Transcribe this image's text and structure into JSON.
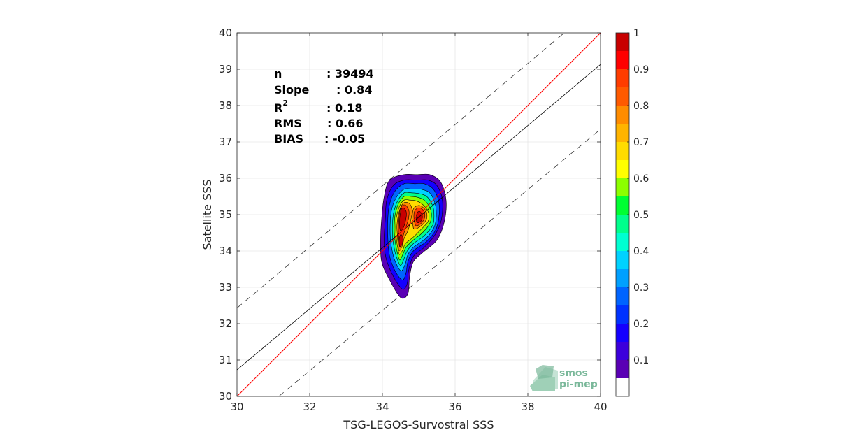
{
  "chart_data": {
    "type": "heatmap",
    "xlabel": "TSG-LEGOS-Survostral SSS",
    "ylabel": "Satellite SSS",
    "xlim": [
      30,
      40
    ],
    "ylim": [
      30,
      40
    ],
    "xticks": [
      "30",
      "32",
      "34",
      "36",
      "38",
      "40"
    ],
    "yticks": [
      "30",
      "31",
      "32",
      "33",
      "34",
      "35",
      "36",
      "37",
      "38",
      "39",
      "40"
    ],
    "grid": true,
    "stats": [
      {
        "label": "n",
        "value": ": 39494"
      },
      {
        "label": "Slope",
        "value": ": 0.84"
      },
      {
        "label": "R",
        "sup": "2",
        "value": ": 0.18"
      },
      {
        "label": "RMS",
        "value": ": 0.66"
      },
      {
        "label": "BIAS",
        "value": ": -0.05"
      }
    ],
    "identity_line": {
      "from": [
        30,
        30
      ],
      "to": [
        40,
        40
      ],
      "color": "#ff0000"
    },
    "regression_line": {
      "from": [
        30,
        30.73
      ],
      "to": [
        40,
        39.13
      ],
      "color": "#000000"
    },
    "envelope_lines": [
      {
        "from": [
          30,
          32.43
        ],
        "to": [
          39.0,
          40.0
        ],
        "style": "dashed"
      },
      {
        "from": [
          31.15,
          30.0
        ],
        "to": [
          40,
          37.35
        ],
        "style": "dashed"
      }
    ],
    "density_contours": [
      {
        "level": 0.05,
        "color": "#5a00b4",
        "points": [
          [
            34.5,
            32.72
          ],
          [
            34.7,
            32.82
          ],
          [
            34.75,
            33.3
          ],
          [
            34.85,
            33.7
          ],
          [
            35.1,
            33.95
          ],
          [
            35.5,
            34.3
          ],
          [
            35.7,
            34.8
          ],
          [
            35.75,
            35.4
          ],
          [
            35.6,
            35.9
          ],
          [
            35.3,
            36.1
          ],
          [
            34.95,
            36.1
          ],
          [
            34.6,
            36.1
          ],
          [
            34.2,
            35.95
          ],
          [
            34.05,
            35.5
          ],
          [
            33.98,
            34.9
          ],
          [
            33.95,
            34.3
          ],
          [
            33.98,
            33.7
          ],
          [
            34.2,
            33.2
          ]
        ]
      },
      {
        "level": 0.15,
        "color": "#1400ff",
        "points": [
          [
            34.55,
            32.95
          ],
          [
            34.68,
            33.1
          ],
          [
            34.72,
            33.45
          ],
          [
            34.85,
            33.85
          ],
          [
            35.15,
            34.1
          ],
          [
            35.45,
            34.45
          ],
          [
            35.62,
            34.85
          ],
          [
            35.65,
            35.4
          ],
          [
            35.5,
            35.8
          ],
          [
            35.25,
            35.95
          ],
          [
            34.95,
            35.95
          ],
          [
            34.6,
            35.95
          ],
          [
            34.3,
            35.8
          ],
          [
            34.12,
            35.4
          ],
          [
            34.08,
            34.9
          ],
          [
            34.05,
            34.3
          ],
          [
            34.1,
            33.8
          ],
          [
            34.3,
            33.3
          ]
        ]
      },
      {
        "level": 0.25,
        "color": "#0064ff",
        "points": [
          [
            34.55,
            33.2
          ],
          [
            34.65,
            33.4
          ],
          [
            34.7,
            33.7
          ],
          [
            34.85,
            34.0
          ],
          [
            35.2,
            34.25
          ],
          [
            35.45,
            34.55
          ],
          [
            35.55,
            34.9
          ],
          [
            35.55,
            35.35
          ],
          [
            35.4,
            35.7
          ],
          [
            35.15,
            35.85
          ],
          [
            34.9,
            35.85
          ],
          [
            34.6,
            35.85
          ],
          [
            34.35,
            35.65
          ],
          [
            34.2,
            35.3
          ],
          [
            34.15,
            34.9
          ],
          [
            34.15,
            34.35
          ],
          [
            34.2,
            33.85
          ],
          [
            34.35,
            33.45
          ]
        ]
      },
      {
        "level": 0.35,
        "color": "#00d2ff",
        "points": [
          [
            34.52,
            33.45
          ],
          [
            34.63,
            33.65
          ],
          [
            34.7,
            33.9
          ],
          [
            34.85,
            34.1
          ],
          [
            35.2,
            34.35
          ],
          [
            35.42,
            34.65
          ],
          [
            35.48,
            34.95
          ],
          [
            35.45,
            35.3
          ],
          [
            35.3,
            35.6
          ],
          [
            35.05,
            35.7
          ],
          [
            34.85,
            35.7
          ],
          [
            34.6,
            35.7
          ],
          [
            34.4,
            35.5
          ],
          [
            34.27,
            35.2
          ],
          [
            34.22,
            34.85
          ],
          [
            34.22,
            34.35
          ],
          [
            34.28,
            33.95
          ],
          [
            34.38,
            33.65
          ]
        ]
      },
      {
        "level": 0.45,
        "color": "#00ff8c",
        "points": [
          [
            34.5,
            33.6
          ],
          [
            34.6,
            33.8
          ],
          [
            34.68,
            34.0
          ],
          [
            34.85,
            34.2
          ],
          [
            35.15,
            34.42
          ],
          [
            35.38,
            34.7
          ],
          [
            35.42,
            34.98
          ],
          [
            35.38,
            35.25
          ],
          [
            35.22,
            35.5
          ],
          [
            35.0,
            35.58
          ],
          [
            34.8,
            35.6
          ],
          [
            34.6,
            35.6
          ],
          [
            34.43,
            35.4
          ],
          [
            34.32,
            35.1
          ],
          [
            34.28,
            34.8
          ],
          [
            34.28,
            34.4
          ],
          [
            34.33,
            34.05
          ],
          [
            34.4,
            33.8
          ]
        ]
      },
      {
        "level": 0.55,
        "color": "#8cff00",
        "points": [
          [
            34.48,
            33.75
          ],
          [
            34.58,
            33.95
          ],
          [
            34.65,
            34.1
          ],
          [
            34.85,
            34.3
          ],
          [
            35.1,
            34.5
          ],
          [
            35.3,
            34.75
          ],
          [
            35.35,
            35.0
          ],
          [
            35.3,
            35.2
          ],
          [
            35.15,
            35.4
          ],
          [
            34.95,
            35.48
          ],
          [
            34.78,
            35.5
          ],
          [
            34.6,
            35.5
          ],
          [
            34.45,
            35.32
          ],
          [
            34.36,
            35.05
          ],
          [
            34.33,
            34.8
          ],
          [
            34.33,
            34.45
          ],
          [
            34.37,
            34.15
          ],
          [
            34.42,
            33.92
          ]
        ]
      },
      {
        "level": 0.65,
        "color": "#ffdc00",
        "points": [
          [
            34.47,
            33.9
          ],
          [
            34.57,
            34.05
          ],
          [
            34.63,
            34.2
          ],
          [
            34.85,
            34.38
          ],
          [
            35.05,
            34.58
          ],
          [
            35.25,
            34.8
          ],
          [
            35.28,
            35.0
          ],
          [
            35.22,
            35.15
          ],
          [
            35.08,
            35.3
          ],
          [
            34.92,
            35.38
          ],
          [
            34.76,
            35.4
          ],
          [
            34.6,
            35.4
          ],
          [
            34.48,
            35.25
          ],
          [
            34.4,
            35.0
          ],
          [
            34.37,
            34.8
          ],
          [
            34.37,
            34.5
          ],
          [
            34.4,
            34.22
          ],
          [
            34.43,
            34.05
          ]
        ]
      },
      {
        "level": 0.75,
        "color": "#ff8c00",
        "points": [
          [
            34.46,
            34.0
          ],
          [
            34.55,
            34.15
          ],
          [
            34.6,
            34.35
          ],
          [
            34.7,
            34.55
          ],
          [
            34.78,
            34.85
          ],
          [
            34.82,
            35.1
          ],
          [
            34.75,
            35.3
          ],
          [
            34.6,
            35.33
          ],
          [
            34.5,
            35.2
          ],
          [
            34.43,
            34.95
          ],
          [
            34.4,
            34.7
          ],
          [
            34.41,
            34.45
          ],
          [
            34.43,
            34.2
          ]
        ]
      },
      {
        "level": 0.75,
        "color": "#ff8c00",
        "points": [
          [
            34.88,
            34.6
          ],
          [
            35.05,
            34.68
          ],
          [
            35.2,
            34.85
          ],
          [
            35.22,
            35.05
          ],
          [
            35.12,
            35.2
          ],
          [
            34.98,
            35.25
          ],
          [
            34.85,
            35.15
          ],
          [
            34.82,
            34.9
          ],
          [
            34.84,
            34.7
          ]
        ]
      },
      {
        "level": 0.85,
        "color": "#ff3c00",
        "points": [
          [
            34.48,
            34.1
          ],
          [
            34.55,
            34.25
          ],
          [
            34.58,
            34.45
          ],
          [
            34.65,
            34.65
          ],
          [
            34.72,
            34.9
          ],
          [
            34.73,
            35.1
          ],
          [
            34.65,
            35.25
          ],
          [
            34.55,
            35.25
          ],
          [
            34.48,
            35.1
          ],
          [
            34.45,
            34.85
          ],
          [
            34.44,
            34.6
          ],
          [
            34.45,
            34.35
          ]
        ]
      },
      {
        "level": 0.85,
        "color": "#ff3c00",
        "points": [
          [
            34.92,
            34.7
          ],
          [
            35.05,
            34.75
          ],
          [
            35.15,
            34.88
          ],
          [
            35.16,
            35.05
          ],
          [
            35.07,
            35.17
          ],
          [
            34.97,
            35.18
          ],
          [
            34.88,
            35.08
          ],
          [
            34.87,
            34.88
          ]
        ]
      },
      {
        "level": 0.95,
        "color": "#c80000",
        "points": [
          [
            34.5,
            34.55
          ],
          [
            34.58,
            34.65
          ],
          [
            34.64,
            34.85
          ],
          [
            34.66,
            35.05
          ],
          [
            34.6,
            35.18
          ],
          [
            34.52,
            35.15
          ],
          [
            34.48,
            34.95
          ],
          [
            34.47,
            34.72
          ]
        ]
      },
      {
        "level": 0.95,
        "color": "#c80000",
        "points": [
          [
            34.48,
            34.12
          ],
          [
            34.55,
            34.2
          ],
          [
            34.56,
            34.38
          ],
          [
            34.5,
            34.45
          ],
          [
            34.46,
            34.3
          ]
        ]
      },
      {
        "level": 0.95,
        "color": "#c80000",
        "points": [
          [
            34.96,
            34.78
          ],
          [
            35.06,
            34.82
          ],
          [
            35.1,
            34.95
          ],
          [
            35.04,
            35.08
          ],
          [
            34.96,
            35.06
          ],
          [
            34.93,
            34.9
          ]
        ]
      }
    ],
    "colorbar": {
      "ticks": [
        "0.1",
        "0.2",
        "0.3",
        "0.4",
        "0.5",
        "0.6",
        "0.7",
        "0.8",
        "0.9",
        "1"
      ],
      "tick_values": [
        0.1,
        0.2,
        0.3,
        0.4,
        0.5,
        0.6,
        0.7,
        0.8,
        0.9,
        1.0
      ],
      "range": [
        0,
        1
      ],
      "levels": [
        {
          "from": 0.0,
          "to": 0.05,
          "color": "#ffffff"
        },
        {
          "from": 0.05,
          "to": 0.1,
          "color": "#5a00b4"
        },
        {
          "from": 0.1,
          "to": 0.15,
          "color": "#3c00dc"
        },
        {
          "from": 0.15,
          "to": 0.2,
          "color": "#1400ff"
        },
        {
          "from": 0.2,
          "to": 0.25,
          "color": "#0032ff"
        },
        {
          "from": 0.25,
          "to": 0.3,
          "color": "#0064ff"
        },
        {
          "from": 0.3,
          "to": 0.35,
          "color": "#00a0ff"
        },
        {
          "from": 0.35,
          "to": 0.4,
          "color": "#00d2ff"
        },
        {
          "from": 0.4,
          "to": 0.45,
          "color": "#00ffd2"
        },
        {
          "from": 0.45,
          "to": 0.5,
          "color": "#00ff8c"
        },
        {
          "from": 0.5,
          "to": 0.55,
          "color": "#00ff32"
        },
        {
          "from": 0.55,
          "to": 0.6,
          "color": "#8cff00"
        },
        {
          "from": 0.6,
          "to": 0.65,
          "color": "#ffff00"
        },
        {
          "from": 0.65,
          "to": 0.7,
          "color": "#ffdc00"
        },
        {
          "from": 0.7,
          "to": 0.75,
          "color": "#ffb400"
        },
        {
          "from": 0.75,
          "to": 0.8,
          "color": "#ff8c00"
        },
        {
          "from": 0.8,
          "to": 0.85,
          "color": "#ff5a00"
        },
        {
          "from": 0.85,
          "to": 0.9,
          "color": "#ff3c00"
        },
        {
          "from": 0.9,
          "to": 0.95,
          "color": "#ff0000"
        },
        {
          "from": 0.95,
          "to": 1.0,
          "color": "#c80000"
        }
      ]
    }
  },
  "logo": {
    "line1": "smos",
    "line2": "pi-mep"
  }
}
